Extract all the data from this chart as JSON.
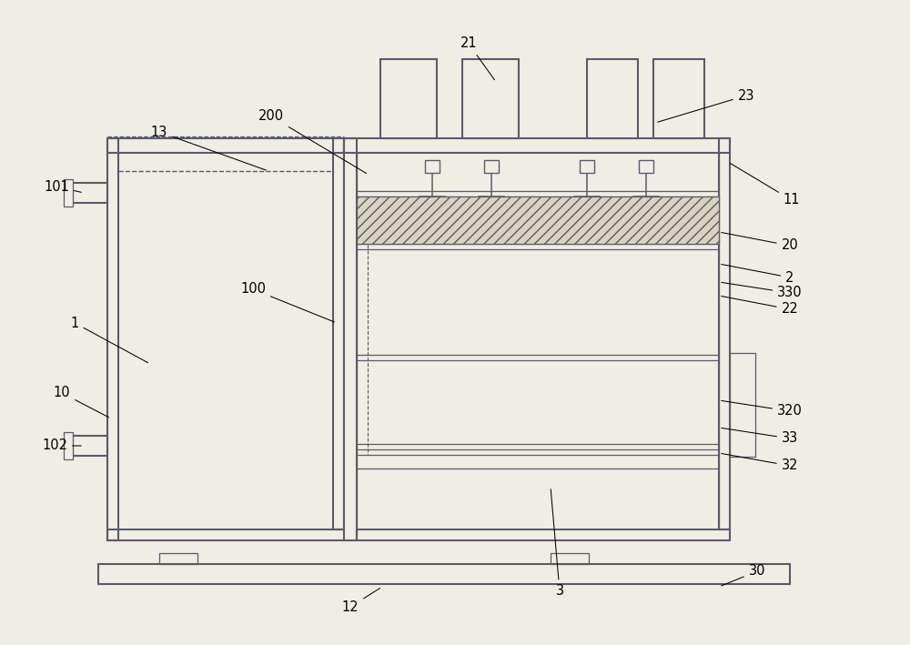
{
  "bg_color": "#f0ede4",
  "line_color": "#5a5a6a",
  "fig_width": 10.0,
  "fig_height": 7.09,
  "dpi": 100,
  "hatch_fc": "#d8d4c0",
  "labels": [
    [
      "1",
      82,
      355,
      165,
      400
    ],
    [
      "10",
      68,
      432,
      122,
      460
    ],
    [
      "11",
      870,
      220,
      800,
      178
    ],
    [
      "12",
      385,
      667,
      420,
      645
    ],
    [
      "13",
      175,
      145,
      295,
      188
    ],
    [
      "20",
      868,
      270,
      790,
      255
    ],
    [
      "21",
      515,
      48,
      545,
      90
    ],
    [
      "22",
      868,
      340,
      790,
      325
    ],
    [
      "23",
      820,
      105,
      720,
      135
    ],
    [
      "100",
      278,
      318,
      370,
      355
    ],
    [
      "101",
      62,
      205,
      92,
      212
    ],
    [
      "102",
      60,
      490,
      92,
      490
    ],
    [
      "200",
      298,
      128,
      405,
      192
    ],
    [
      "2",
      868,
      305,
      790,
      290
    ],
    [
      "3",
      615,
      650,
      605,
      535
    ],
    [
      "30",
      832,
      628,
      790,
      645
    ],
    [
      "32",
      868,
      512,
      790,
      498
    ],
    [
      "33",
      868,
      482,
      790,
      470
    ],
    [
      "320",
      868,
      452,
      790,
      440
    ],
    [
      "330",
      868,
      322,
      790,
      310
    ]
  ]
}
